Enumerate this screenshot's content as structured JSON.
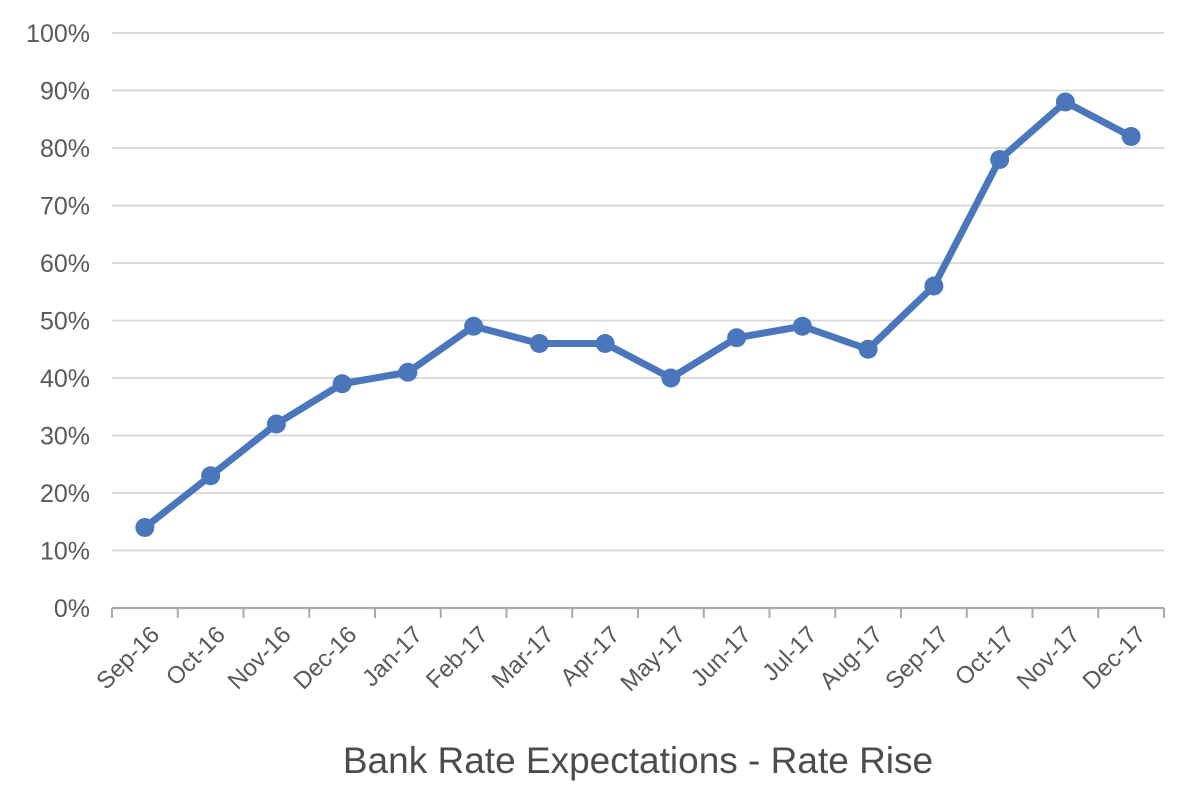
{
  "chart_data": {
    "type": "line",
    "title": "Bank Rate Expectations - Rate Rise",
    "categories": [
      "Sep-16",
      "Oct-16",
      "Nov-16",
      "Dec-16",
      "Jan-17",
      "Feb-17",
      "Mar-17",
      "Apr-17",
      "May-17",
      "Jun-17",
      "Jul-17",
      "Aug-17",
      "Sep-17",
      "Oct-17",
      "Nov-17",
      "Dec-17"
    ],
    "values": [
      14,
      23,
      32,
      39,
      41,
      49,
      46,
      46,
      40,
      47,
      49,
      45,
      56,
      78,
      88,
      82
    ],
    "xlabel": "",
    "ylabel": "",
    "ylim": [
      0,
      100
    ],
    "ytick_step": 10,
    "ytick_labels": [
      "0%",
      "10%",
      "20%",
      "30%",
      "40%",
      "50%",
      "60%",
      "70%",
      "80%",
      "90%",
      "100%"
    ],
    "grid": true,
    "legend": "none",
    "marker": "circle",
    "colors": {
      "line": "#4A77BC",
      "marker": "#4A77BC",
      "gridline": "#D6D6D6",
      "axis": "#A9A9A9",
      "tick_label": "#595959",
      "title": "#4C4C4C"
    }
  }
}
